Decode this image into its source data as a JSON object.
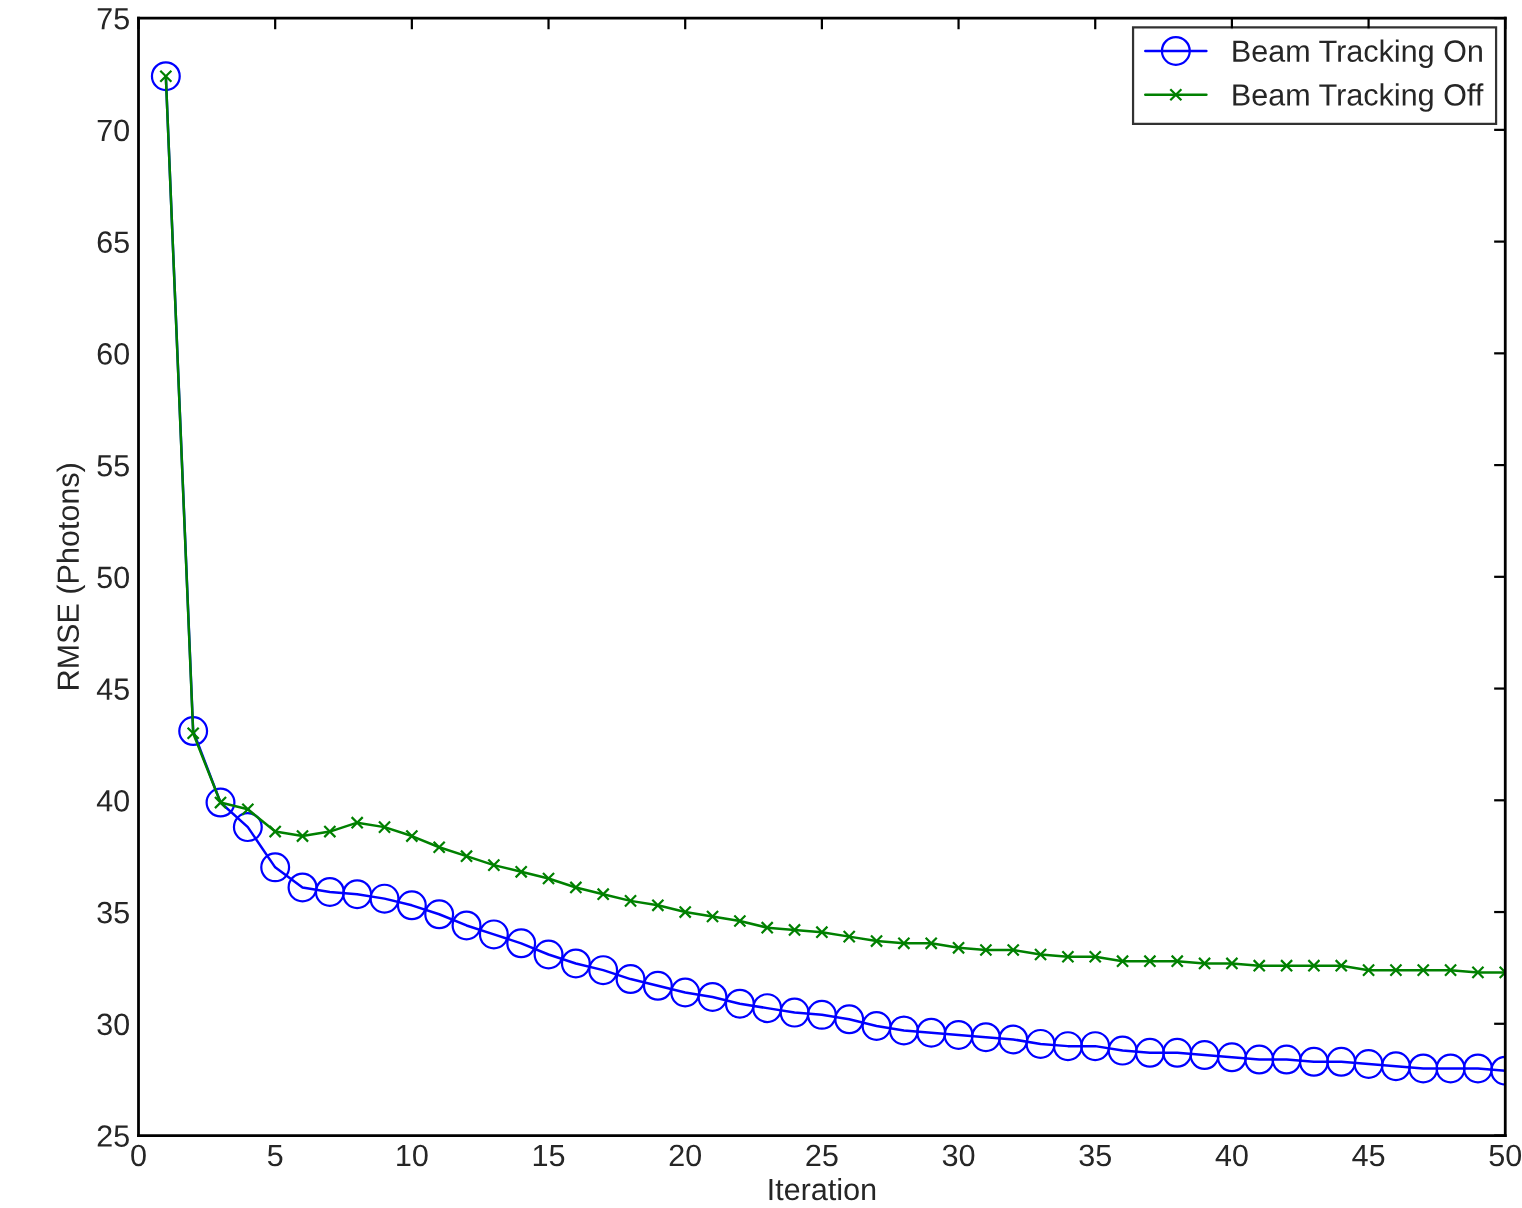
{
  "chart_data": {
    "type": "line",
    "xlabel": "Iteration",
    "ylabel": "RMSE (Photons)",
    "x": [
      1,
      2,
      3,
      4,
      5,
      6,
      7,
      8,
      9,
      10,
      11,
      12,
      13,
      14,
      15,
      16,
      17,
      18,
      19,
      20,
      21,
      22,
      23,
      24,
      25,
      26,
      27,
      28,
      29,
      30,
      31,
      32,
      33,
      34,
      35,
      36,
      37,
      38,
      39,
      40,
      41,
      42,
      43,
      44,
      45,
      46,
      47,
      48,
      49,
      50
    ],
    "series": [
      {
        "name": "Beam Tracking On",
        "color": "#0000ff",
        "marker": "circle",
        "values": [
          72.4,
          43.1,
          39.9,
          38.8,
          37.0,
          36.1,
          35.9,
          35.8,
          35.6,
          35.3,
          34.9,
          34.4,
          34.0,
          33.6,
          33.1,
          32.7,
          32.4,
          32.0,
          31.7,
          31.4,
          31.2,
          30.9,
          30.7,
          30.5,
          30.4,
          30.2,
          29.9,
          29.7,
          29.6,
          29.5,
          29.4,
          29.3,
          29.1,
          29.0,
          29.0,
          28.8,
          28.7,
          28.7,
          28.6,
          28.5,
          28.4,
          28.4,
          28.3,
          28.3,
          28.2,
          28.1,
          28.0,
          28.0,
          28.0,
          27.9
        ]
      },
      {
        "name": "Beam Tracking Off",
        "color": "#008000",
        "marker": "cross",
        "values": [
          72.4,
          43.0,
          39.9,
          39.6,
          38.6,
          38.4,
          38.6,
          39.0,
          38.8,
          38.4,
          37.9,
          37.5,
          37.1,
          36.8,
          36.5,
          36.1,
          35.8,
          35.5,
          35.3,
          35.0,
          34.8,
          34.6,
          34.3,
          34.2,
          34.1,
          33.9,
          33.7,
          33.6,
          33.6,
          33.4,
          33.3,
          33.3,
          33.1,
          33.0,
          33.0,
          32.8,
          32.8,
          32.8,
          32.7,
          32.7,
          32.6,
          32.6,
          32.6,
          32.6,
          32.4,
          32.4,
          32.4,
          32.4,
          32.3,
          32.3
        ]
      }
    ],
    "xlim": [
      0,
      50
    ],
    "xticks": [
      0,
      5,
      10,
      15,
      20,
      25,
      30,
      35,
      40,
      45,
      50
    ],
    "ylim": [
      25,
      75
    ],
    "yticks": [
      25,
      30,
      35,
      40,
      45,
      50,
      55,
      60,
      65,
      70,
      75
    ],
    "grid": false,
    "legend": "top right",
    "line_style": "solid"
  }
}
